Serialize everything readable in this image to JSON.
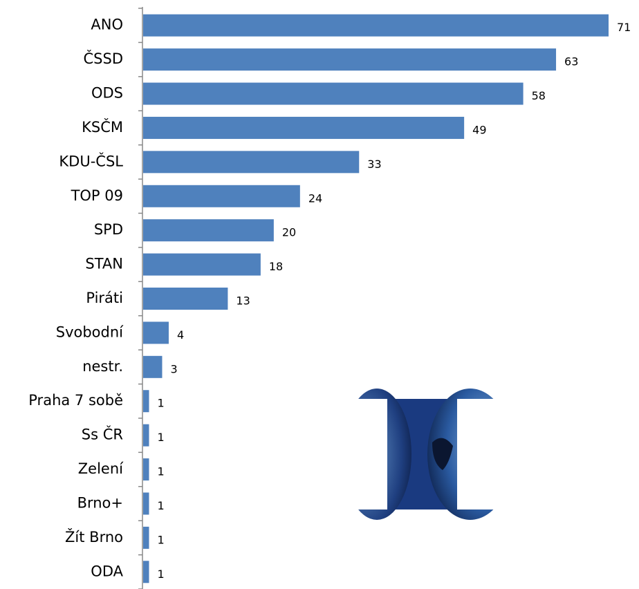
{
  "chart_data": {
    "type": "bar",
    "orientation": "horizontal",
    "color": "#4f81bd",
    "categories": [
      "ANO",
      "ČSSD",
      "ODS",
      "KSČM",
      "KDU-ČSL",
      "TOP 09",
      "SPD",
      "STAN",
      "Piráti",
      "Svobodní",
      "nestr.",
      "Praha 7 sobě",
      "Ss ČR",
      "Zelení",
      "Brno+",
      "Žít Brno",
      "ODA"
    ],
    "values": [
      71,
      63,
      58,
      49,
      33,
      24,
      20,
      18,
      13,
      4,
      3,
      1,
      1,
      1,
      1,
      1,
      1
    ]
  }
}
